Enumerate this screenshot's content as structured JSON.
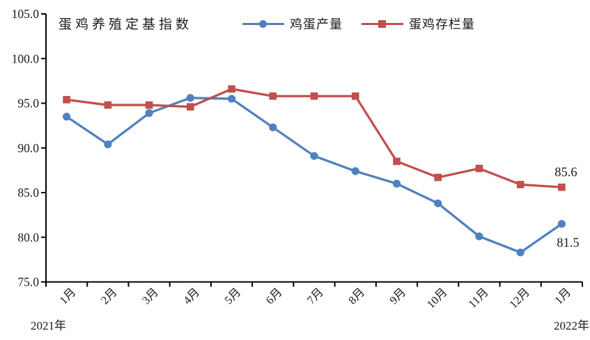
{
  "chart_data": {
    "type": "line",
    "title": "蛋鸡养殖定基指数",
    "categories": [
      "1月",
      "2月",
      "3月",
      "4月",
      "5月",
      "6月",
      "7月",
      "8月",
      "9月",
      "10月",
      "11月",
      "12月",
      "1月"
    ],
    "series": [
      {
        "name": "鸡蛋产量",
        "color": "#4f81bd",
        "marker": "circle",
        "values": [
          93.5,
          90.4,
          93.9,
          95.6,
          95.5,
          92.3,
          89.1,
          87.4,
          86.0,
          83.8,
          80.1,
          78.3,
          81.5
        ],
        "end_label": "81.5"
      },
      {
        "name": "蛋鸡存栏量",
        "color": "#c0504d",
        "marker": "square",
        "values": [
          95.4,
          94.8,
          94.8,
          94.6,
          96.6,
          95.8,
          95.8,
          95.8,
          88.5,
          86.7,
          87.7,
          85.9,
          85.6
        ],
        "end_label": "85.6"
      }
    ],
    "ylim": [
      75,
      105
    ],
    "ytick_step": 5,
    "ytick_labels": [
      "75.0",
      "80.0",
      "85.0",
      "90.0",
      "95.0",
      "100.0",
      "105.0"
    ],
    "x_axis_years": [
      "2021年",
      "2022年"
    ],
    "grid": false,
    "legend_position": "top",
    "axis_color": "#000000",
    "text_color": "#1a1a1a",
    "xlabel": "",
    "ylabel": ""
  }
}
